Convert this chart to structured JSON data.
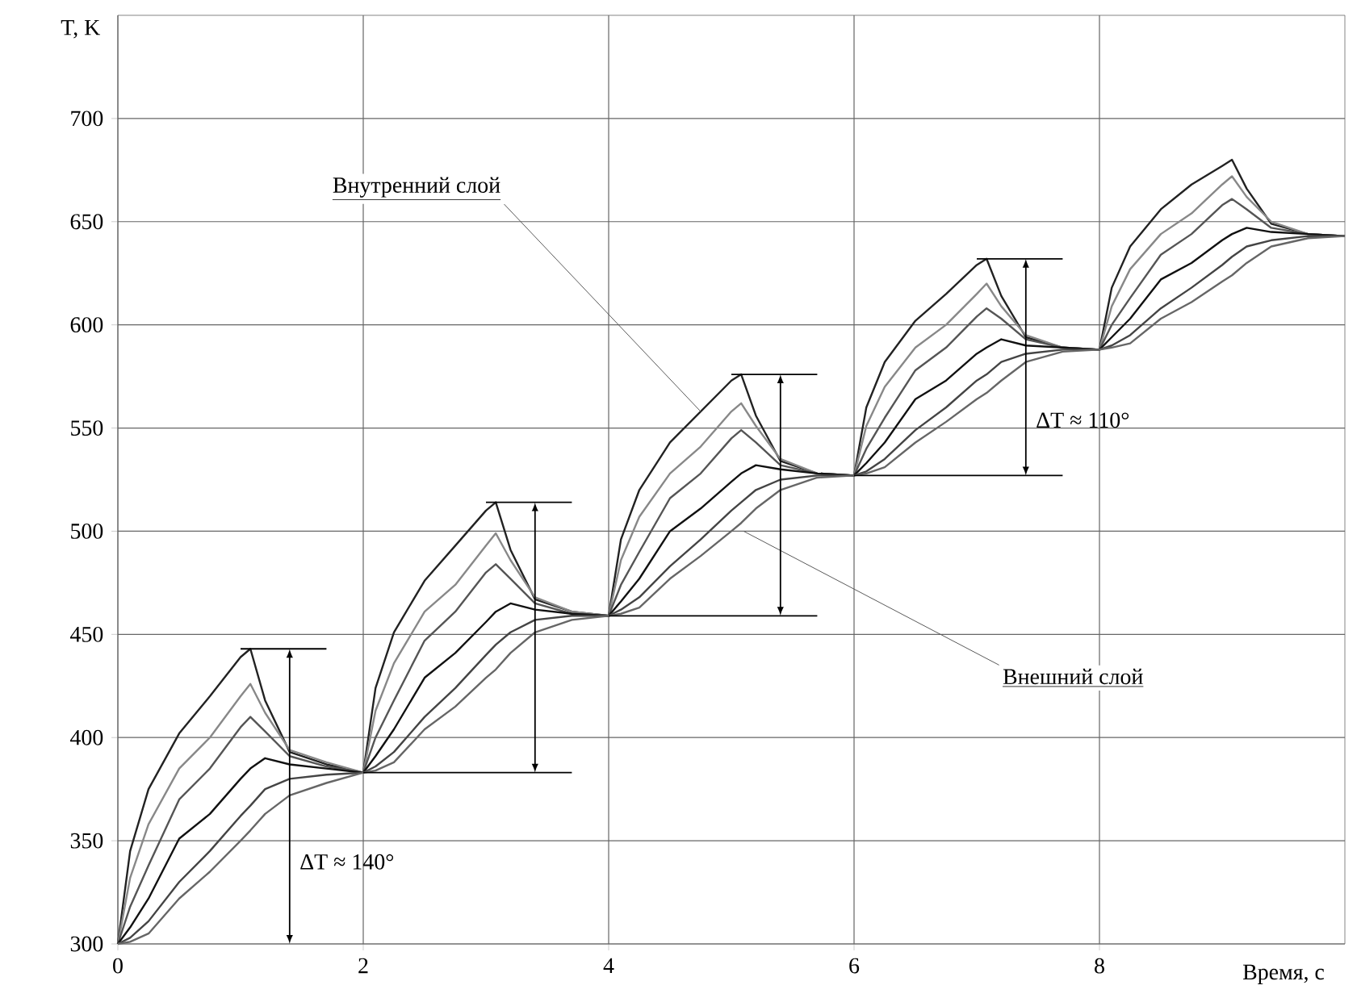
{
  "chart_data": {
    "type": "line",
    "xlabel": "Время, с",
    "ylabel": "T, K",
    "xlim": [
      0,
      10
    ],
    "ylim": [
      300,
      750
    ],
    "xticks": [
      0,
      2,
      4,
      6,
      8
    ],
    "yticks": [
      300,
      350,
      400,
      450,
      500,
      550,
      600,
      650,
      700
    ],
    "grid": true,
    "marker": "none",
    "line_style": "solid",
    "x": [
      0,
      0.1,
      0.25,
      0.5,
      0.75,
      1,
      1.08,
      1.2,
      1.4,
      1.7,
      2,
      2.1,
      2.25,
      2.5,
      2.75,
      3,
      3.08,
      3.2,
      3.4,
      3.7,
      4,
      4.1,
      4.25,
      4.5,
      4.75,
      5,
      5.08,
      5.2,
      5.4,
      5.7,
      6,
      6.1,
      6.25,
      6.5,
      6.75,
      7,
      7.08,
      7.2,
      7.4,
      7.7,
      8,
      8.1,
      8.25,
      8.5,
      8.75,
      9,
      9.08,
      9.2,
      9.4,
      9.7,
      10
    ],
    "series": [
      {
        "color": "#222222",
        "values": [
          300,
          345,
          375,
          402,
          420,
          439,
          443,
          418,
          393,
          387,
          383,
          424,
          451,
          476,
          493,
          510,
          514,
          491,
          467,
          461,
          459,
          496,
          520,
          543,
          558,
          573,
          576,
          556,
          534,
          528,
          527,
          560,
          582,
          602,
          615,
          629,
          632,
          614,
          594,
          589,
          588,
          618,
          638,
          656,
          668,
          677,
          680,
          666,
          649,
          644,
          643
        ]
      },
      {
        "color": "#888888",
        "values": [
          300,
          332,
          358,
          385,
          400,
          420,
          426,
          412,
          394,
          388,
          383,
          413,
          436,
          461,
          474,
          493,
          499,
          486,
          468,
          461,
          459,
          486,
          507,
          528,
          541,
          558,
          562,
          551,
          535,
          528,
          527,
          551,
          570,
          589,
          600,
          615,
          620,
          609,
          595,
          589,
          588,
          609,
          627,
          644,
          654,
          668,
          672,
          662,
          650,
          644,
          643
        ]
      },
      {
        "color": "#555555",
        "values": [
          300,
          318,
          338,
          370,
          385,
          405,
          410,
          403,
          391,
          386,
          383,
          400,
          418,
          447,
          461,
          480,
          484,
          477,
          465,
          460,
          459,
          474,
          490,
          516,
          528,
          545,
          549,
          543,
          532,
          528,
          527,
          540,
          555,
          578,
          589,
          604,
          608,
          603,
          593,
          589,
          588,
          600,
          613,
          634,
          644,
          658,
          661,
          656,
          647,
          644,
          643
        ]
      },
      {
        "color": "#111111",
        "values": [
          300,
          308,
          322,
          351,
          363,
          380,
          385,
          390,
          387,
          385,
          383,
          391,
          404,
          429,
          441,
          456,
          461,
          465,
          462,
          460,
          459,
          466,
          477,
          500,
          511,
          524,
          528,
          532,
          530,
          528,
          527,
          533,
          543,
          564,
          573,
          586,
          589,
          593,
          590,
          589,
          588,
          594,
          603,
          622,
          630,
          641,
          644,
          647,
          645,
          644,
          643
        ]
      },
      {
        "color": "#444444",
        "values": [
          300,
          303,
          311,
          330,
          345,
          362,
          367,
          375,
          380,
          382,
          383,
          386,
          393,
          410,
          424,
          440,
          445,
          451,
          457,
          459,
          459,
          462,
          468,
          483,
          496,
          510,
          514,
          520,
          525,
          527,
          527,
          529,
          535,
          549,
          560,
          573,
          576,
          582,
          586,
          588,
          588,
          590,
          595,
          608,
          618,
          629,
          633,
          638,
          641,
          643,
          643
        ]
      },
      {
        "color": "#666666",
        "values": [
          300,
          301,
          305,
          322,
          335,
          350,
          355,
          363,
          372,
          378,
          383,
          384,
          388,
          404,
          415,
          429,
          433,
          441,
          451,
          457,
          459,
          460,
          463,
          477,
          488,
          500,
          504,
          511,
          520,
          526,
          527,
          528,
          531,
          543,
          553,
          564,
          567,
          573,
          582,
          587,
          588,
          589,
          591,
          603,
          611,
          621,
          624,
          630,
          638,
          642,
          643
        ]
      }
    ],
    "annotations": [
      {
        "text": "Внутренний слой",
        "x": 4.75,
        "y": 558
      },
      {
        "text": "Внешний слой",
        "x": 5.1,
        "y": 500
      },
      "ΔT ≈ 140°",
      "ΔT ≈ 110°"
    ]
  }
}
